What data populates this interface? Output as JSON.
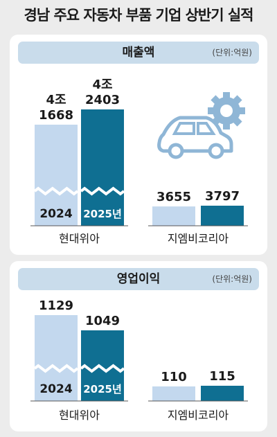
{
  "title": "경남 주요 자동차 부품 기업 상반기 실적",
  "colors": {
    "y2024": "#c3d8ee",
    "y2025": "#0f6f92",
    "header": "#c9dceb",
    "text": "#1a1a1a"
  },
  "icons": [
    "car-icon",
    "gear-icon"
  ],
  "chart_data": [
    {
      "type": "bar",
      "title": "매출액",
      "unit_label": "(단위:억원)",
      "categories": [
        "현대위아",
        "지엠비코리아"
      ],
      "series": [
        {
          "name": "2024",
          "values": [
            41668,
            3655
          ]
        },
        {
          "name": "2025년",
          "values": [
            42403,
            3797
          ]
        }
      ],
      "value_labels": [
        [
          [
            "4조",
            "1668"
          ],
          [
            "3655"
          ]
        ],
        [
          [
            "4조",
            "2403"
          ],
          [
            "3797"
          ]
        ]
      ],
      "broken_axis": true
    },
    {
      "type": "bar",
      "title": "영업이익",
      "unit_label": "(단위:억원)",
      "categories": [
        "현대위아",
        "지엠비코리아"
      ],
      "series": [
        {
          "name": "2024",
          "values": [
            1129,
            110
          ]
        },
        {
          "name": "2025년",
          "values": [
            1049,
            115
          ]
        }
      ],
      "value_labels": [
        [
          [
            "1129"
          ],
          [
            "110"
          ]
        ],
        [
          [
            "1049"
          ],
          [
            "115"
          ]
        ]
      ],
      "broken_axis": true
    }
  ]
}
